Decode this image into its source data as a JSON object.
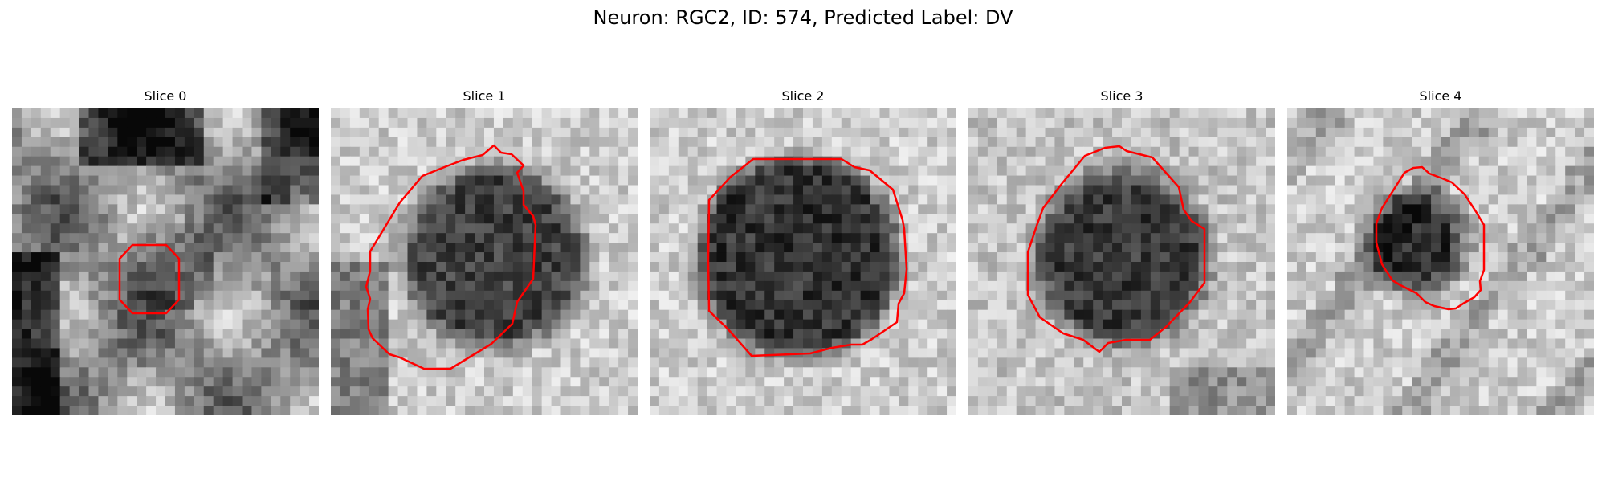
{
  "figure": {
    "title": "Neuron: RGC2, ID: 574, Predicted Label: DV"
  },
  "panels": [
    {
      "title": "Slice 0"
    },
    {
      "title": "Slice 1"
    },
    {
      "title": "Slice 2"
    },
    {
      "title": "Slice 3"
    },
    {
      "title": "Slice 4"
    }
  ],
  "colors": {
    "contour": "#ff0000"
  }
}
